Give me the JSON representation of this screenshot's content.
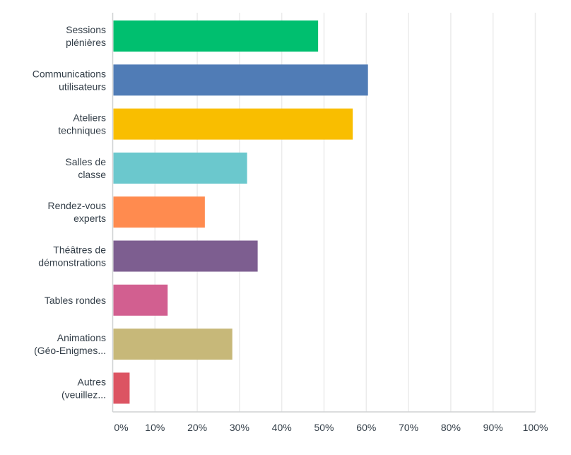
{
  "chart_data": {
    "type": "bar",
    "orientation": "horizontal",
    "categories": [
      [
        "Sessions",
        "plénières"
      ],
      [
        "Communications",
        "utilisateurs"
      ],
      [
        "Ateliers",
        "techniques"
      ],
      [
        "Salles de",
        "classe"
      ],
      [
        "Rendez-vous",
        "experts"
      ],
      [
        "Théâtres de",
        "démonstrations"
      ],
      [
        "Tables rondes"
      ],
      [
        "Animations",
        "(Géo-Enigmes..."
      ],
      [
        "Autres",
        "(veuillez..."
      ]
    ],
    "values": [
      48.6,
      60.4,
      56.8,
      31.8,
      21.8,
      34.3,
      13.0,
      28.3,
      4.0
    ],
    "colors": [
      "#00bf6f",
      "#507cb6",
      "#f9be00",
      "#6bc8cd",
      "#ff8b4f",
      "#7d5e90",
      "#d25f90",
      "#c7b879",
      "#dc5462"
    ],
    "xlim": [
      0,
      100
    ],
    "xticks": [
      "0%",
      "10%",
      "20%",
      "30%",
      "40%",
      "50%",
      "60%",
      "70%",
      "80%",
      "90%",
      "100%"
    ],
    "grid": true,
    "unit": "%"
  }
}
